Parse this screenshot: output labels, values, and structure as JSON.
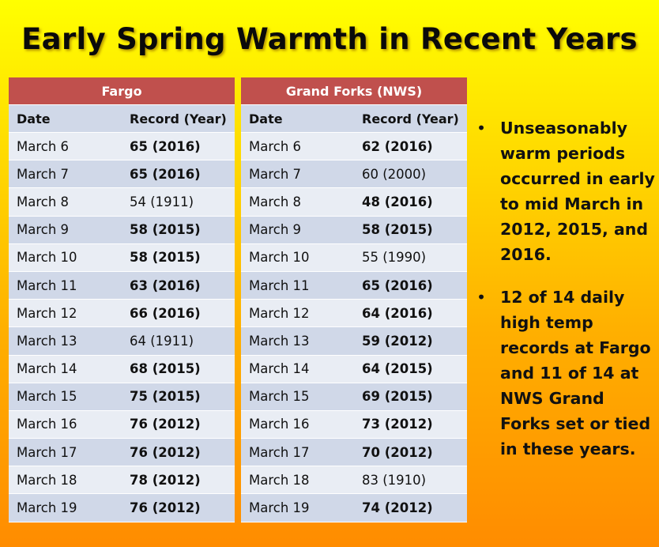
{
  "title": "Early Spring Warmth in Recent Years",
  "colors": {
    "header_red": "#c0504d",
    "row_dark": "#d0d8e8",
    "row_light": "#e9edf4",
    "bg_top": "#ffff00",
    "bg_bottom": "#ff8c00"
  },
  "fargo": {
    "name": "Fargo",
    "col_date": "Date",
    "col_record": "Record (Year)",
    "rows": [
      {
        "date": "March 6",
        "record": "65 (2016)",
        "bold": true
      },
      {
        "date": "March 7",
        "record": "65 (2016)",
        "bold": true
      },
      {
        "date": "March 8",
        "record": "54 (1911)",
        "bold": false
      },
      {
        "date": "March 9",
        "record": "58 (2015)",
        "bold": true
      },
      {
        "date": "March 10",
        "record": "58 (2015)",
        "bold": true
      },
      {
        "date": "March 11",
        "record": "63 (2016)",
        "bold": true
      },
      {
        "date": "March 12",
        "record": "66 (2016)",
        "bold": true
      },
      {
        "date": "March 13",
        "record": "64 (1911)",
        "bold": false
      },
      {
        "date": "March 14",
        "record": "68 (2015)",
        "bold": true
      },
      {
        "date": "March 15",
        "record": "75 (2015)",
        "bold": true
      },
      {
        "date": "March 16",
        "record": "76 (2012)",
        "bold": true
      },
      {
        "date": "March 17",
        "record": "76 (2012)",
        "bold": true
      },
      {
        "date": "March 18",
        "record": "78 (2012)",
        "bold": true
      },
      {
        "date": "March 19",
        "record": "76 (2012)",
        "bold": true
      }
    ]
  },
  "grand_forks": {
    "name": "Grand Forks (NWS)",
    "col_date": "Date",
    "col_record": "Record (Year)",
    "rows": [
      {
        "date": "March 6",
        "record": "62 (2016)",
        "bold": true
      },
      {
        "date": "March 7",
        "record": "60 (2000)",
        "bold": false
      },
      {
        "date": "March 8",
        "record": "48 (2016)",
        "bold": true
      },
      {
        "date": "March 9",
        "record": "58 (2015)",
        "bold": true
      },
      {
        "date": "March 10",
        "record": "55 (1990)",
        "bold": false
      },
      {
        "date": "March 11",
        "record": "65 (2016)",
        "bold": true
      },
      {
        "date": "March 12",
        "record": "64 (2016)",
        "bold": true
      },
      {
        "date": "March 13",
        "record": "59 (2012)",
        "bold": true
      },
      {
        "date": "March 14",
        "record": "64 (2015)",
        "bold": true
      },
      {
        "date": "March 15",
        "record": "69 (2015)",
        "bold": true
      },
      {
        "date": "March 16",
        "record": "73 (2012)",
        "bold": true
      },
      {
        "date": "March 17",
        "record": "70 (2012)",
        "bold": true
      },
      {
        "date": "March 18",
        "record": "83 (1910)",
        "bold": false
      },
      {
        "date": "March 19",
        "record": "74 (2012)",
        "bold": true
      }
    ]
  },
  "bullets": [
    "Unseasonably warm periods occurred in early to mid March in 2012, 2015, and 2016.",
    "12 of 14 daily high temp records at Fargo and 11 of 14 at NWS Grand Forks set or tied in these years."
  ]
}
